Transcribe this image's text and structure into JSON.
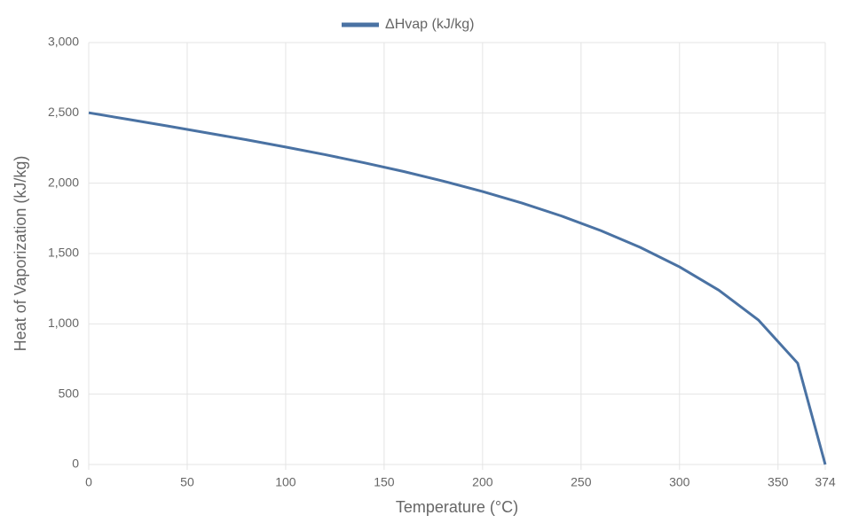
{
  "chart_data": {
    "type": "line",
    "x_label": "Temperature (°C)",
    "y_label": "Heat of Vaporization (kJ/kg)",
    "x": [
      0,
      20,
      40,
      60,
      80,
      100,
      120,
      140,
      160,
      180,
      200,
      220,
      240,
      260,
      280,
      300,
      320,
      340,
      360,
      374
    ],
    "series": [
      {
        "name": "ΔHvap (kJ/kg)",
        "color": "#4a72a3",
        "values": [
          2501,
          2454,
          2407,
          2358,
          2309,
          2257,
          2203,
          2145,
          2083,
          2015,
          1941,
          1859,
          1767,
          1663,
          1544,
          1405,
          1239,
          1028,
          720,
          0
        ]
      }
    ],
    "xlim": [
      0,
      374
    ],
    "xticks": [
      0,
      50,
      100,
      150,
      200,
      250,
      300,
      350,
      374
    ],
    "ylim": [
      0,
      3000
    ],
    "yticks": [
      0,
      500,
      {
        "value": 1000,
        "label": "1,000"
      },
      {
        "value": 1500,
        "label": "1,500"
      },
      {
        "value": 2000,
        "label": "2,000"
      },
      {
        "value": 2500,
        "label": "2,500"
      },
      {
        "value": 3000,
        "label": "3,000"
      }
    ],
    "grid": true,
    "legend": "top"
  }
}
